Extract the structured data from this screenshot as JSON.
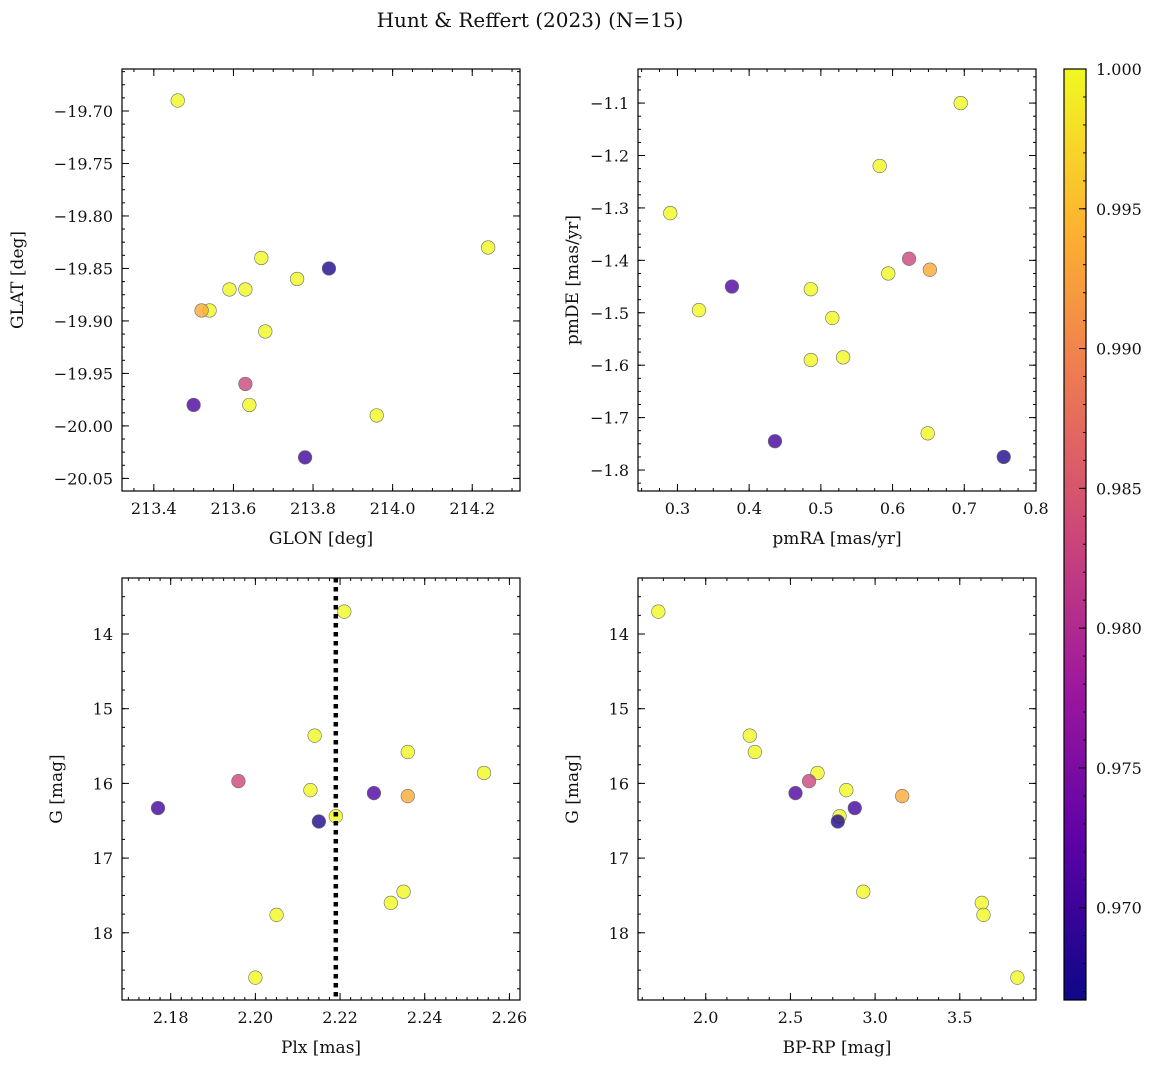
{
  "figure": {
    "title": "Hunt & Reffert (2023) (N=15)"
  },
  "colors": {
    "colormap": [
      "#0d0887",
      "#5c01a6",
      "#9c179e",
      "#cc4778",
      "#ed7953",
      "#fdb42f",
      "#f0f921"
    ],
    "marker_alpha": 0.8,
    "edge": "#6e6e6e",
    "reference_line": "#000000"
  },
  "colorbar": {
    "vmin": 0.9667,
    "vmax": 1.0,
    "ticks": [
      0.97,
      0.975,
      0.98,
      0.985,
      0.99,
      0.995,
      1.0
    ],
    "tick_labels": [
      "0.970",
      "0.975",
      "0.980",
      "0.985",
      "0.990",
      "0.995",
      "1.000"
    ],
    "minor_step": 0.001
  },
  "chart_data": [
    {
      "type": "scatter",
      "xlabel": "GLON [deg]",
      "ylabel": "GLAT [deg]",
      "xlim": [
        213.32,
        214.32
      ],
      "ylim": [
        -20.062,
        -19.66
      ],
      "y_inverted": false,
      "xticks": [
        213.4,
        213.6,
        213.8,
        214.0,
        214.2
      ],
      "xtick_labels": [
        "213.4",
        "213.6",
        "213.8",
        "214.0",
        "214.2"
      ],
      "xminor": 0.05,
      "yticks": [
        -19.7,
        -19.75,
        -19.8,
        -19.85,
        -19.9,
        -19.95,
        -20.0,
        -20.05
      ],
      "ytick_labels": [
        "−19.70",
        "−19.75",
        "−19.80",
        "−19.85",
        "−19.90",
        "−19.95",
        "−20.00",
        "−20.05"
      ],
      "yminor": 0.0125,
      "points": [
        {
          "x": 213.46,
          "y": -19.69,
          "c": 1.0
        },
        {
          "x": 214.24,
          "y": -19.83,
          "c": 1.0
        },
        {
          "x": 213.67,
          "y": -19.84,
          "c": 1.0
        },
        {
          "x": 213.76,
          "y": -19.86,
          "c": 1.0
        },
        {
          "x": 213.59,
          "y": -19.87,
          "c": 1.0
        },
        {
          "x": 213.63,
          "y": -19.87,
          "c": 1.0
        },
        {
          "x": 213.54,
          "y": -19.89,
          "c": 1.0
        },
        {
          "x": 213.68,
          "y": -19.91,
          "c": 1.0
        },
        {
          "x": 213.64,
          "y": -19.98,
          "c": 1.0
        },
        {
          "x": 213.96,
          "y": -19.99,
          "c": 1.0
        },
        {
          "x": 213.52,
          "y": -19.89,
          "c": 0.9935
        },
        {
          "x": 213.63,
          "y": -19.96,
          "c": 0.9832
        },
        {
          "x": 213.84,
          "y": -19.85,
          "c": 0.9678
        },
        {
          "x": 213.5,
          "y": -19.98,
          "c": 0.9712
        },
        {
          "x": 213.78,
          "y": -20.03,
          "c": 0.9703
        }
      ]
    },
    {
      "type": "scatter",
      "xlabel": "pmRA [mas/yr]",
      "ylabel": "pmDE [mas/yr]",
      "xlim": [
        0.245,
        0.8
      ],
      "ylim": [
        -1.84,
        -1.035
      ],
      "y_inverted": false,
      "xticks": [
        0.3,
        0.4,
        0.5,
        0.6,
        0.7,
        0.8
      ],
      "xtick_labels": [
        "0.3",
        "0.4",
        "0.5",
        "0.6",
        "0.7",
        "0.8"
      ],
      "xminor": 0.025,
      "yticks": [
        -1.1,
        -1.2,
        -1.3,
        -1.4,
        -1.5,
        -1.6,
        -1.7,
        -1.8
      ],
      "ytick_labels": [
        "−1.1",
        "−1.2",
        "−1.3",
        "−1.4",
        "−1.5",
        "−1.6",
        "−1.7",
        "−1.8"
      ],
      "yminor": 0.025,
      "points": [
        {
          "x": 0.695,
          "y": -1.1,
          "c": 1.0
        },
        {
          "x": 0.582,
          "y": -1.22,
          "c": 1.0
        },
        {
          "x": 0.29,
          "y": -1.31,
          "c": 1.0
        },
        {
          "x": 0.594,
          "y": -1.425,
          "c": 1.0
        },
        {
          "x": 0.486,
          "y": -1.455,
          "c": 1.0
        },
        {
          "x": 0.33,
          "y": -1.495,
          "c": 1.0
        },
        {
          "x": 0.516,
          "y": -1.51,
          "c": 1.0
        },
        {
          "x": 0.486,
          "y": -1.59,
          "c": 1.0
        },
        {
          "x": 0.531,
          "y": -1.585,
          "c": 1.0
        },
        {
          "x": 0.649,
          "y": -1.73,
          "c": 1.0
        },
        {
          "x": 0.652,
          "y": -1.418,
          "c": 0.9935
        },
        {
          "x": 0.623,
          "y": -1.397,
          "c": 0.9832
        },
        {
          "x": 0.376,
          "y": -1.45,
          "c": 0.9712
        },
        {
          "x": 0.436,
          "y": -1.745,
          "c": 0.9703
        },
        {
          "x": 0.755,
          "y": -1.775,
          "c": 0.9678
        }
      ]
    },
    {
      "type": "scatter",
      "xlabel": "Plx [mas]",
      "ylabel": "G [mag]",
      "xlim": [
        2.1685,
        2.2625
      ],
      "ylim": [
        18.9,
        13.25
      ],
      "y_inverted": true,
      "xticks": [
        2.18,
        2.2,
        2.22,
        2.24,
        2.26
      ],
      "xtick_labels": [
        "2.18",
        "2.20",
        "2.22",
        "2.24",
        "2.26"
      ],
      "xminor": 0.0025,
      "yticks": [
        14,
        15,
        16,
        17,
        18
      ],
      "ytick_labels": [
        "14",
        "15",
        "16",
        "17",
        "18"
      ],
      "yminor": 0.25,
      "reference_line": {
        "x": 2.219,
        "style": "dotted"
      },
      "points": [
        {
          "x": 2.221,
          "y": 13.7,
          "c": 1.0
        },
        {
          "x": 2.214,
          "y": 15.36,
          "c": 1.0
        },
        {
          "x": 2.236,
          "y": 15.58,
          "c": 1.0
        },
        {
          "x": 2.254,
          "y": 15.86,
          "c": 1.0
        },
        {
          "x": 2.213,
          "y": 16.09,
          "c": 1.0
        },
        {
          "x": 2.219,
          "y": 16.44,
          "c": 1.0
        },
        {
          "x": 2.235,
          "y": 17.45,
          "c": 1.0
        },
        {
          "x": 2.232,
          "y": 17.6,
          "c": 1.0
        },
        {
          "x": 2.205,
          "y": 17.76,
          "c": 1.0
        },
        {
          "x": 2.2,
          "y": 18.6,
          "c": 1.0
        },
        {
          "x": 2.236,
          "y": 16.17,
          "c": 0.9935
        },
        {
          "x": 2.196,
          "y": 15.97,
          "c": 0.9832
        },
        {
          "x": 2.228,
          "y": 16.13,
          "c": 0.9712
        },
        {
          "x": 2.177,
          "y": 16.33,
          "c": 0.9703
        },
        {
          "x": 2.215,
          "y": 16.51,
          "c": 0.9678
        }
      ]
    },
    {
      "type": "scatter",
      "xlabel": "BP-RP [mag]",
      "ylabel": "G [mag]",
      "xlim": [
        1.6,
        3.95
      ],
      "ylim": [
        18.9,
        13.25
      ],
      "y_inverted": true,
      "xticks": [
        2.0,
        2.5,
        3.0,
        3.5
      ],
      "xtick_labels": [
        "2.0",
        "2.5",
        "3.0",
        "3.5"
      ],
      "xminor": 0.125,
      "yticks": [
        14,
        15,
        16,
        17,
        18
      ],
      "ytick_labels": [
        "14",
        "15",
        "16",
        "17",
        "18"
      ],
      "yminor": 0.25,
      "points": [
        {
          "x": 1.72,
          "y": 13.7,
          "c": 1.0
        },
        {
          "x": 2.26,
          "y": 15.36,
          "c": 1.0
        },
        {
          "x": 2.29,
          "y": 15.58,
          "c": 1.0
        },
        {
          "x": 2.66,
          "y": 15.86,
          "c": 1.0
        },
        {
          "x": 2.83,
          "y": 16.09,
          "c": 1.0
        },
        {
          "x": 2.79,
          "y": 16.44,
          "c": 1.0
        },
        {
          "x": 2.93,
          "y": 17.45,
          "c": 1.0
        },
        {
          "x": 3.63,
          "y": 17.6,
          "c": 1.0
        },
        {
          "x": 3.64,
          "y": 17.76,
          "c": 1.0
        },
        {
          "x": 3.84,
          "y": 18.6,
          "c": 1.0
        },
        {
          "x": 3.16,
          "y": 16.17,
          "c": 0.9935
        },
        {
          "x": 2.61,
          "y": 15.97,
          "c": 0.9832
        },
        {
          "x": 2.53,
          "y": 16.13,
          "c": 0.9712
        },
        {
          "x": 2.88,
          "y": 16.33,
          "c": 0.9703
        },
        {
          "x": 2.78,
          "y": 16.51,
          "c": 0.9678
        }
      ]
    }
  ]
}
